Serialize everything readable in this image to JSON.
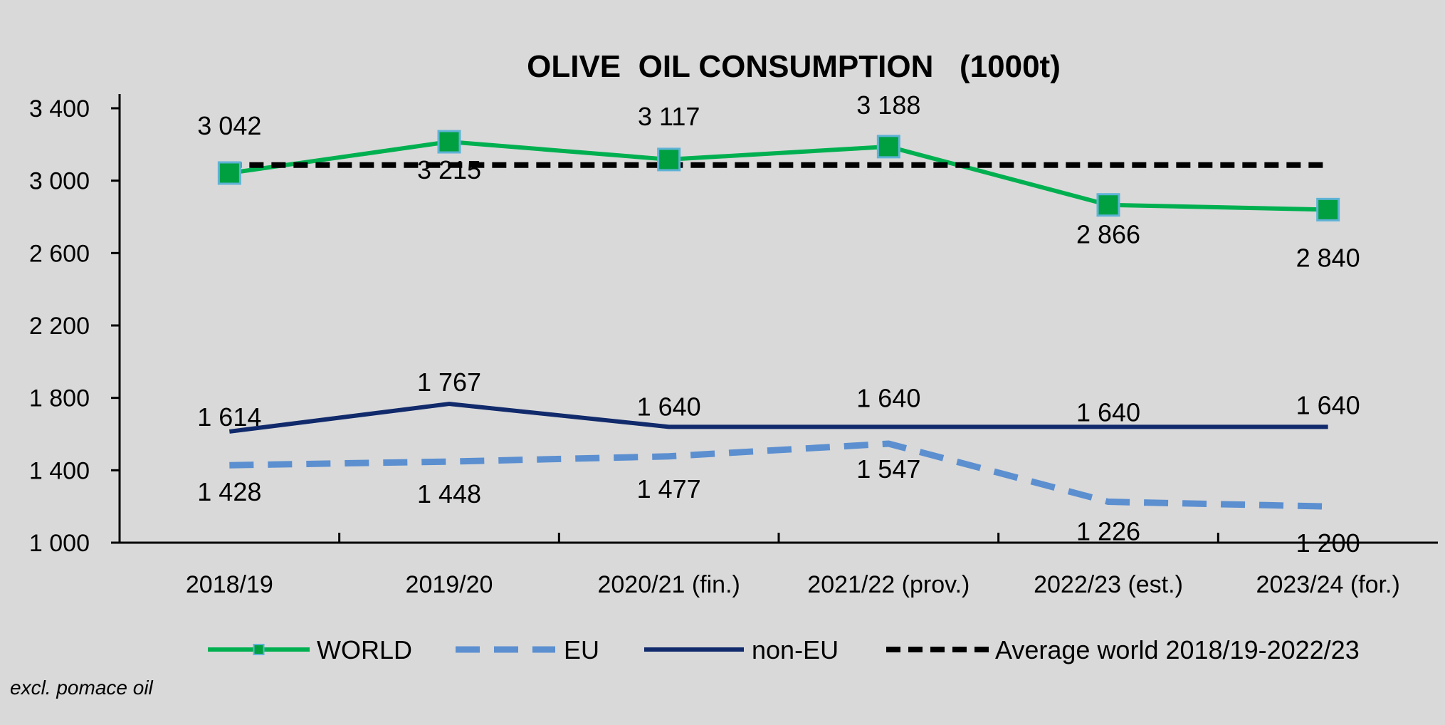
{
  "chart_data": {
    "type": "line",
    "title": "OLIVE  OIL CONSUMPTION   (1000t)",
    "categories": [
      "2018/19",
      "2019/20",
      "2020/21 (fin.)",
      "2021/22 (prov.)",
      "2022/23 (est.)",
      "2023/24 (for.)"
    ],
    "ylim": [
      1000,
      3400
    ],
    "yticks": [
      1000,
      1400,
      1800,
      2200,
      2600,
      3000,
      3400
    ],
    "ytick_labels": [
      "1 000",
      "1 400",
      "1 800",
      "2 200",
      "2 600",
      "3 000",
      "3 400"
    ],
    "grid": false,
    "legend_position": "bottom",
    "series": [
      {
        "name": "WORLD",
        "color": "#00b050",
        "marker_color": "#00a040",
        "marker_border": "#5fb3d6",
        "style": "solid-square-markers",
        "values": [
          3042,
          3215,
          3117,
          3188,
          2866,
          2840
        ],
        "labels": [
          "3 042",
          "3 215",
          "3 117",
          "3 188",
          "2 866",
          "2 840"
        ]
      },
      {
        "name": "EU",
        "color": "#5b8fd0",
        "style": "dashed",
        "values": [
          1428,
          1448,
          1477,
          1547,
          1226,
          1200
        ],
        "labels": [
          "1 428",
          "1 448",
          "1 477",
          "1 547",
          "1 226",
          "1 200"
        ]
      },
      {
        "name": "non-EU",
        "color": "#112a6b",
        "style": "solid",
        "values": [
          1614,
          1767,
          1640,
          1640,
          1640,
          1640
        ],
        "labels": [
          "1 614",
          "1 767",
          "1 640",
          "1 640",
          "1 640",
          "1 640"
        ]
      },
      {
        "name": "Average world 2018/19-2022/23",
        "color": "#000000",
        "style": "dashed",
        "values": [
          3086,
          3086,
          3086,
          3086,
          3086,
          3086
        ]
      }
    ],
    "note": "excl. pomace oil"
  }
}
